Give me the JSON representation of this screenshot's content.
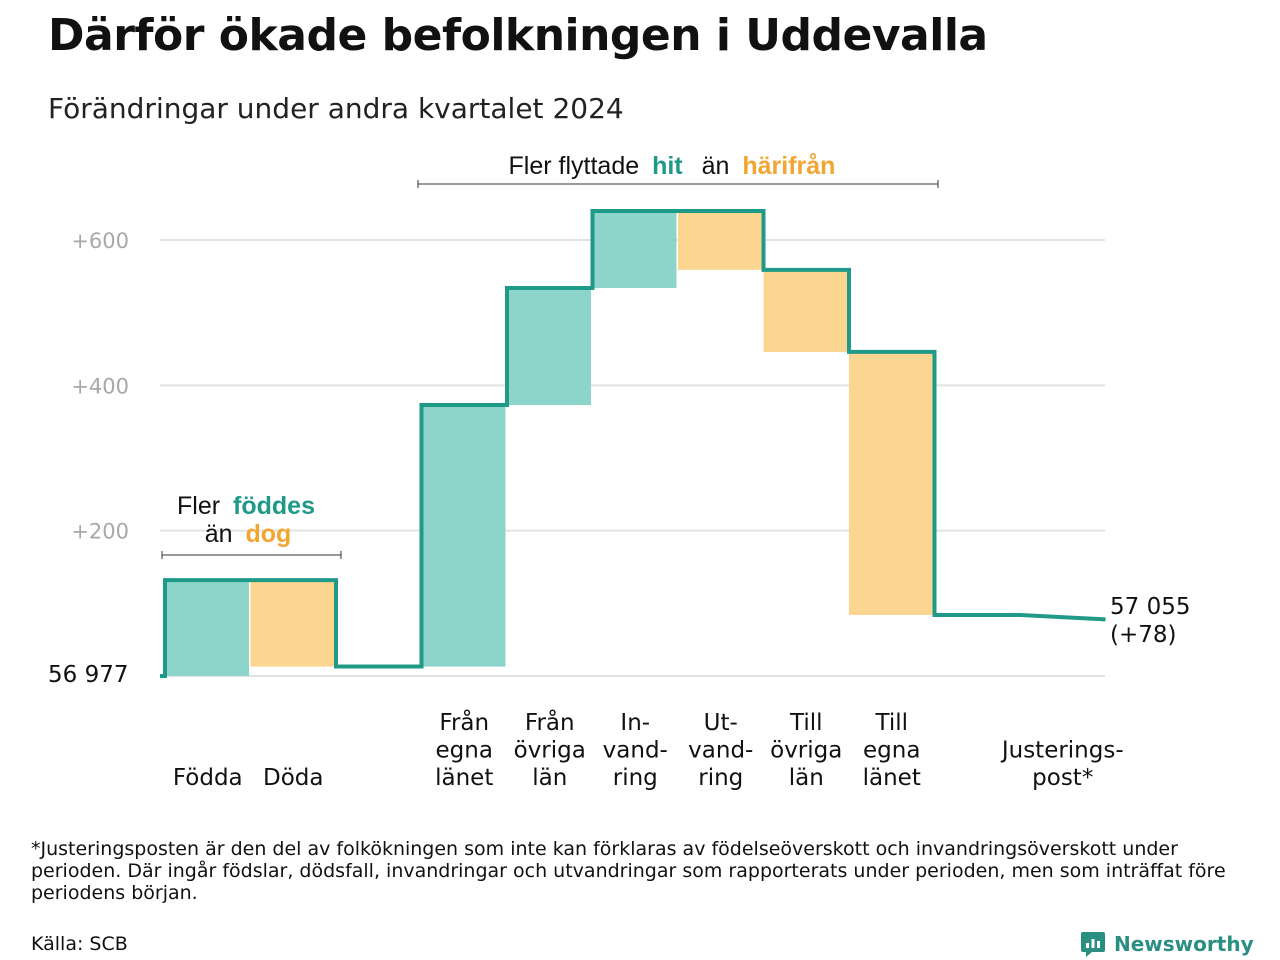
{
  "title": "Därför ökade befolkningen i Uddevalla",
  "subtitle": "Förändringar under andra kvartalet 2024",
  "footnote": "*Justeringsposten är den del av folkökningen som inte kan förklaras av födelseöverskott och invandringsöverskott under perioden. Där ingår födslar, dödsfall, invandringar och utvandringar som rapporterats under perioden, men som inträffat före periodens början.",
  "source": "Källa: SCB",
  "brand": "Newsworthy",
  "colors": {
    "increase": "#8dd5cb",
    "decrease": "#fcd590",
    "line": "#1f9a89",
    "teal_text": "#1f9a89",
    "orange_text": "#f2a530",
    "grid": "#e2e2e2",
    "axis_text": "#a8a8a8"
  },
  "annotations": {
    "birth": {
      "prefix": "Fler",
      "highlight_up": "föddes",
      "mid": "än",
      "highlight_down": "dog"
    },
    "migration": {
      "prefix": "Fler flyttade",
      "highlight_up": "hit",
      "mid": "än",
      "highlight_down": "härifrån"
    }
  },
  "chart_data": {
    "type": "waterfall",
    "start_label": "56  977",
    "end_label": "57 055",
    "end_change_label": "(+78)",
    "ylim": [
      0,
      640
    ],
    "yticks": [
      {
        "value": 200,
        "label": "+200"
      },
      {
        "value": 400,
        "label": "+400"
      },
      {
        "value": 600,
        "label": "+600"
      }
    ],
    "steps": [
      {
        "label": [
          "Födda"
        ],
        "change": 132
      },
      {
        "label": [
          "Döda"
        ],
        "change": -119
      },
      {
        "label": [],
        "change": 0
      },
      {
        "label": [
          "Från",
          "egna",
          "länet"
        ],
        "change": 360
      },
      {
        "label": [
          "Från",
          "övriga",
          "län"
        ],
        "change": 161
      },
      {
        "label": [
          "In-",
          "vand-",
          "ring"
        ],
        "change": 106
      },
      {
        "label": [
          "Ut-",
          "vand-",
          "ring"
        ],
        "change": -81
      },
      {
        "label": [
          "Till",
          "övriga",
          "län"
        ],
        "change": -113
      },
      {
        "label": [
          "Till",
          "egna",
          "länet"
        ],
        "change": -362
      },
      {
        "label": [],
        "change": 0
      },
      {
        "label": [
          "Justerings-",
          "post*"
        ],
        "change": -6
      }
    ]
  }
}
